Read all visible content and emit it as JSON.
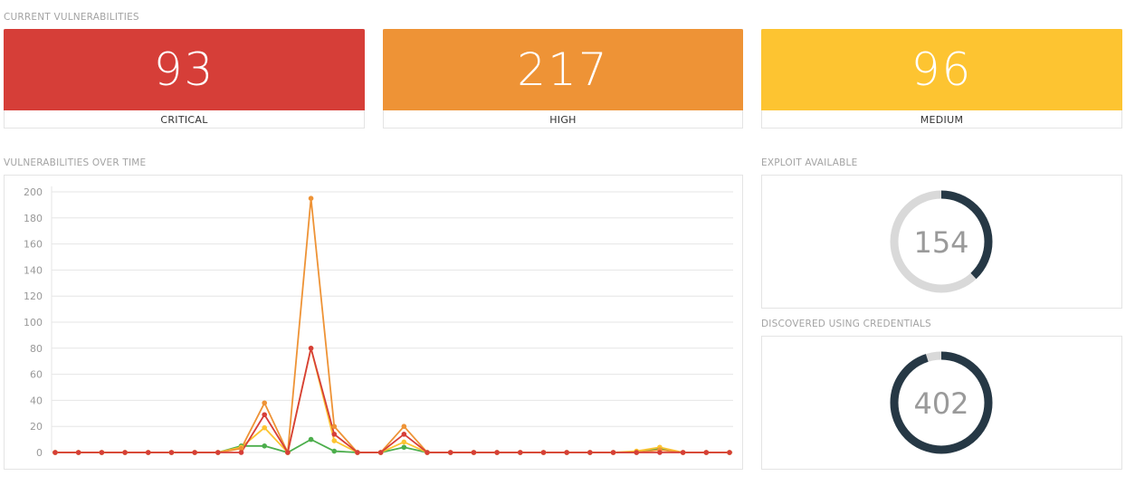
{
  "sections": {
    "current_vulnerabilities": "CURRENT VULNERABILITIES",
    "vulnerabilities_over_time": "VULNERABILITIES OVER TIME",
    "exploit_available": "EXPLOIT AVAILABLE",
    "discovered_using_credentials": "DISCOVERED USING CREDENTIALS"
  },
  "tiles": [
    {
      "id": "critical",
      "value": "93",
      "label": "CRITICAL",
      "color": "#d63e38"
    },
    {
      "id": "high",
      "value": "217",
      "label": "HIGH",
      "color": "#ee9336"
    },
    {
      "id": "medium",
      "value": "96",
      "label": "MEDIUM",
      "color": "#fdc431"
    }
  ],
  "donuts": [
    {
      "id": "exploit",
      "value": "154",
      "fraction": 0.38,
      "fill": "#263845",
      "track": "#d9d9d9"
    },
    {
      "id": "credentials",
      "value": "402",
      "fraction": 0.95,
      "fill": "#263845",
      "track": "#d9d9d9"
    }
  ],
  "chart_data": {
    "type": "line",
    "ylim": [
      0,
      200
    ],
    "yticks": [
      "200",
      "180",
      "160",
      "140",
      "120",
      "100",
      "80",
      "60",
      "40",
      "20",
      "0"
    ],
    "grid": true,
    "x": [
      1,
      2,
      3,
      4,
      5,
      6,
      7,
      8,
      9,
      10,
      11,
      12,
      13,
      14,
      15,
      16,
      17,
      18,
      19,
      20,
      21,
      22,
      23,
      24,
      25,
      26,
      27,
      28,
      29,
      30
    ],
    "series": [
      {
        "color": "#4cae4c",
        "values": [
          0,
          0,
          0,
          0,
          0,
          0,
          0,
          0,
          5,
          5,
          0,
          10,
          1,
          0,
          0,
          4,
          0,
          0,
          0,
          0,
          0,
          0,
          0,
          0,
          0,
          0,
          3,
          0,
          0,
          0
        ]
      },
      {
        "color": "#fdc431",
        "values": [
          0,
          0,
          0,
          0,
          0,
          0,
          0,
          0,
          4,
          19,
          0,
          80,
          9,
          0,
          0,
          8,
          0,
          0,
          0,
          0,
          0,
          0,
          0,
          0,
          0,
          1,
          4,
          0,
          0,
          0
        ]
      },
      {
        "color": "#ee9336",
        "values": [
          0,
          0,
          0,
          0,
          0,
          0,
          0,
          0,
          3,
          38,
          0,
          195,
          20,
          0,
          0,
          20,
          0,
          0,
          0,
          0,
          0,
          0,
          0,
          0,
          0,
          0,
          2,
          0,
          0,
          0
        ]
      },
      {
        "color": "#d63e38",
        "values": [
          0,
          0,
          0,
          0,
          0,
          0,
          0,
          0,
          0,
          29,
          0,
          80,
          14,
          0,
          0,
          14,
          0,
          0,
          0,
          0,
          0,
          0,
          0,
          0,
          0,
          0,
          0,
          0,
          0,
          0
        ]
      }
    ]
  }
}
